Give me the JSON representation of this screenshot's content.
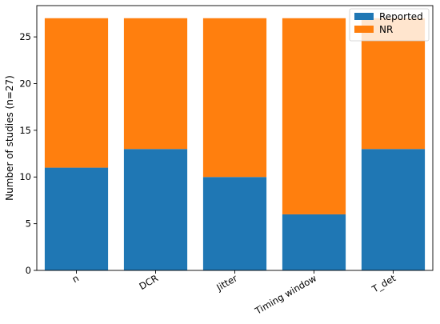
{
  "chart_data": {
    "type": "bar",
    "stacked": true,
    "categories": [
      "n",
      "DCR",
      "Jitter",
      "Timing window",
      "T_det"
    ],
    "series": [
      {
        "name": "Reported",
        "values": [
          11,
          13,
          10,
          6,
          13
        ],
        "color": "#1f77b4"
      },
      {
        "name": "NR",
        "values": [
          16,
          14,
          17,
          21,
          14
        ],
        "color": "#ff7f0e"
      }
    ],
    "title": "",
    "xlabel": "",
    "ylabel": "Number of studies (n=27)",
    "ylim": [
      0,
      28.35
    ],
    "yticks": [
      0,
      5,
      10,
      15,
      20,
      25
    ],
    "grid": false,
    "legend": "top-right"
  }
}
